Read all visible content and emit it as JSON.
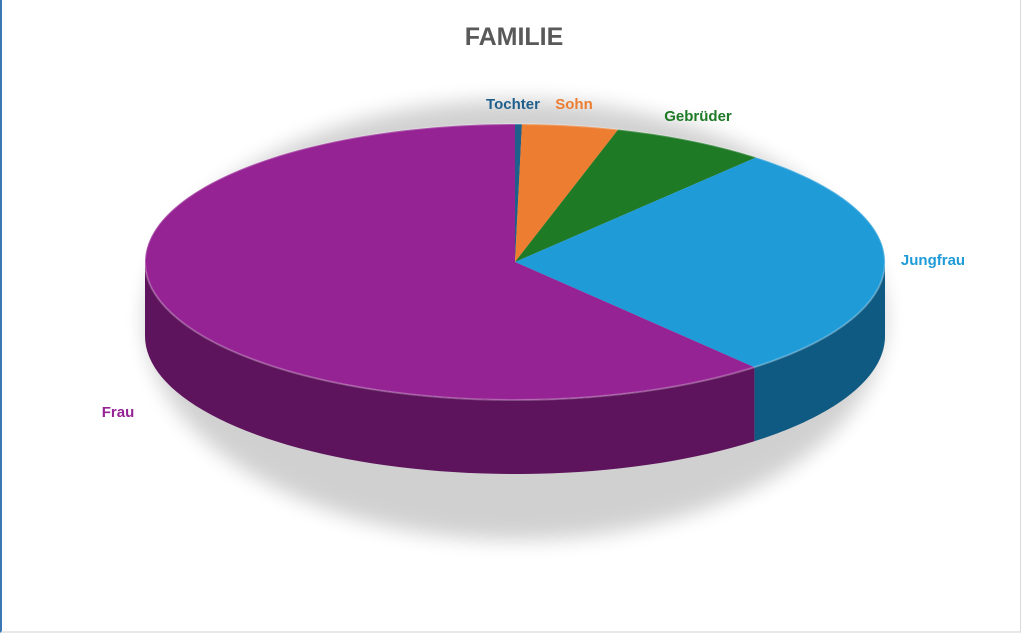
{
  "chart_data": {
    "type": "pie",
    "title": "FAMILIE",
    "categories": [
      "Tochter",
      "Sohn",
      "Gebrüder",
      "Jungfrau",
      "Frau"
    ],
    "values": [
      0.3,
      4.2,
      6.8,
      27.5,
      61.2
    ],
    "colors": [
      "#1f5f8b",
      "#ed7d31",
      "#1e7a25",
      "#1f9bd8",
      "#962394"
    ],
    "side_colors": [
      "#123a56",
      "#9e4f1c",
      "#124a16",
      "#0f5a82",
      "#5e145c"
    ],
    "legend": "none",
    "data_labels": "outside"
  }
}
